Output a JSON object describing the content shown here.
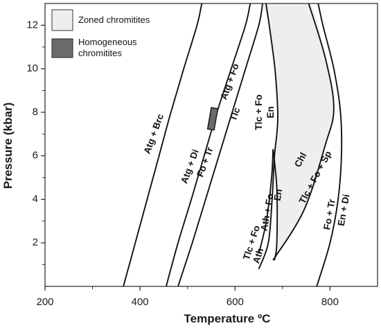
{
  "chart_data": {
    "type": "line",
    "xlabel": "Temperature ºC",
    "ylabel": "Pressure (kbar)",
    "xlim": [
      200,
      900
    ],
    "ylim": [
      0,
      13
    ],
    "x_ticks": [
      200,
      400,
      600,
      800
    ],
    "x_minor_ticks": [
      300,
      500,
      700
    ],
    "y_ticks": [
      2,
      4,
      6,
      8,
      10,
      12
    ],
    "y_minor_ticks": [
      1,
      3,
      5,
      7,
      9,
      11
    ],
    "grid": false,
    "legend": [
      {
        "label": "Zoned chromitites",
        "color": "#eeeeee"
      },
      {
        "label": "Homogeneous chromitites",
        "color": "#6a6a6a"
      }
    ],
    "series": [
      {
        "points": [
          [
            365,
            0
          ],
          [
            390,
            2
          ],
          [
            415,
            4
          ],
          [
            440,
            6
          ],
          [
            465,
            8
          ],
          [
            492,
            10
          ],
          [
            520,
            12
          ],
          [
            530,
            13
          ]
        ]
      },
      {
        "points": [
          [
            455,
            0
          ],
          [
            480,
            2
          ],
          [
            508,
            4
          ],
          [
            535,
            6
          ],
          [
            562,
            8
          ],
          [
            592,
            10
          ],
          [
            622,
            12
          ],
          [
            632,
            13
          ]
        ]
      },
      {
        "points": [
          [
            480,
            0
          ],
          [
            510,
            2
          ],
          [
            538,
            4
          ],
          [
            566,
            6
          ],
          [
            594,
            8
          ],
          [
            622,
            10
          ],
          [
            650,
            12
          ],
          [
            658,
            13
          ]
        ]
      },
      {
        "points": [
          [
            650,
            0.8
          ],
          [
            670,
            2
          ],
          [
            678,
            4
          ],
          [
            683,
            6
          ],
          [
            688,
            7
          ],
          [
            690,
            8
          ],
          [
            684,
            10
          ],
          [
            672,
            12
          ],
          [
            665,
            13
          ]
        ]
      },
      {
        "points": [
          [
            680,
            6.3
          ],
          [
            677,
            5
          ],
          [
            666,
            3
          ],
          [
            650,
            1.5
          ]
        ]
      },
      {
        "points": [
          [
            680,
            6.3
          ],
          [
            688,
            4.5
          ],
          [
            688,
            2
          ],
          [
            683,
            1.2
          ]
        ]
      },
      {
        "points": [
          [
            680,
            1.2
          ],
          [
            745,
            3.5
          ],
          [
            790,
            6.5
          ],
          [
            808,
            8.2
          ],
          [
            790,
            10.5
          ],
          [
            755,
            13
          ]
        ]
      },
      {
        "points": [
          [
            772,
            0
          ],
          [
            800,
            2
          ],
          [
            817,
            4
          ],
          [
            824,
            6
          ],
          [
            822,
            8
          ],
          [
            808,
            10
          ],
          [
            785,
            12
          ],
          [
            775,
            13
          ]
        ]
      }
    ],
    "regions": [
      {
        "label": "Zoned chromitites",
        "color": "#eeeeee",
        "points": [
          [
            680,
            1.2
          ],
          [
            745,
            3.5
          ],
          [
            790,
            6.5
          ],
          [
            808,
            8.2
          ],
          [
            790,
            10.5
          ],
          [
            755,
            13
          ],
          [
            665,
            13
          ],
          [
            672,
            12
          ],
          [
            684,
            10
          ],
          [
            690,
            8
          ],
          [
            688,
            7
          ],
          [
            683,
            6
          ],
          [
            688,
            4.5
          ],
          [
            688,
            2
          ],
          [
            683,
            1.2
          ]
        ]
      },
      {
        "label": "Homogeneous chromitites",
        "color": "#6a6a6a",
        "x": [
          546,
          560
        ],
        "y": [
          7.2,
          8.2
        ]
      }
    ],
    "annotations": [
      {
        "text": "Atg + Brc",
        "x": 430,
        "y": 7.0,
        "angle": -70
      },
      {
        "text": "Atg + Di",
        "x": 506,
        "y": 5.5,
        "angle": -70
      },
      {
        "text": "Fo + Tr",
        "x": 538,
        "y": 5.7,
        "angle": -70
      },
      {
        "text": "Atg + Fo",
        "x": 590,
        "y": 9.4,
        "angle": -70
      },
      {
        "text": "Tlc",
        "x": 601,
        "y": 7.9,
        "angle": -70
      },
      {
        "text": "Tlc + Fo",
        "x": 651,
        "y": 8.0,
        "angle": -90
      },
      {
        "text": "En",
        "x": 676,
        "y": 8.0,
        "angle": -90
      },
      {
        "text": "Chl",
        "x": 739,
        "y": 5.8,
        "angle": -62
      },
      {
        "text": "Tlc + Fo + Sp",
        "x": 770,
        "y": 5.0,
        "angle": -62
      },
      {
        "text": "Tlc + Fo",
        "x": 636,
        "y": 2.0,
        "angle": -72
      },
      {
        "text": "Ath",
        "x": 650,
        "y": 1.4,
        "angle": -72
      },
      {
        "text": "Ath + Fo",
        "x": 669,
        "y": 3.4,
        "angle": -80
      },
      {
        "text": "En",
        "x": 692,
        "y": 4.2,
        "angle": -80
      },
      {
        "text": "Fo + Tr",
        "x": 800,
        "y": 3.3,
        "angle": -80
      },
      {
        "text": "En + Di",
        "x": 830,
        "y": 3.5,
        "angle": -80
      }
    ]
  }
}
